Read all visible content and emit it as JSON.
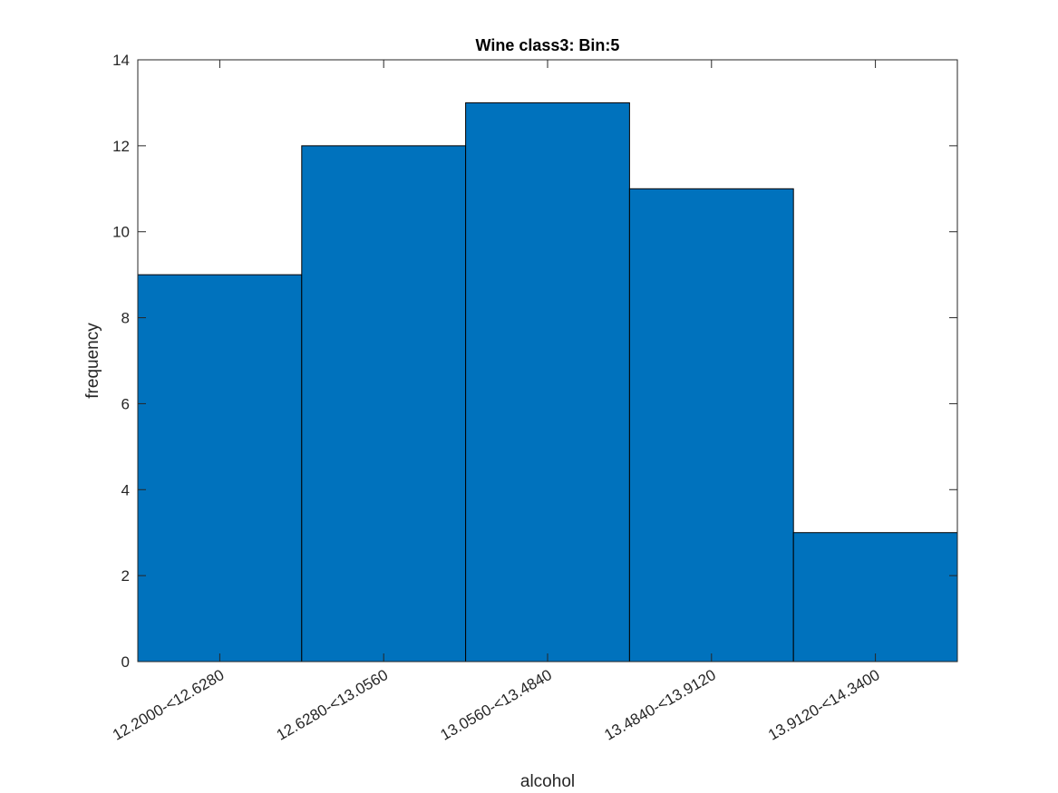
{
  "chart_data": {
    "type": "bar",
    "title": "Wine class3: Bin:5",
    "xlabel": "alcohol",
    "ylabel": "frequency",
    "categories": [
      "12.2000-<12.6280",
      "12.6280-<13.0560",
      "13.0560-<13.4840",
      "13.4840-<13.9120",
      "13.9120-<14.3400"
    ],
    "values": [
      9,
      12,
      13,
      11,
      3
    ],
    "ylim": [
      0,
      14
    ],
    "yticks": [
      0,
      2,
      4,
      6,
      8,
      10,
      12,
      14
    ],
    "grid": false,
    "bar_color": "#0072BD",
    "edge_color": "#000000"
  }
}
